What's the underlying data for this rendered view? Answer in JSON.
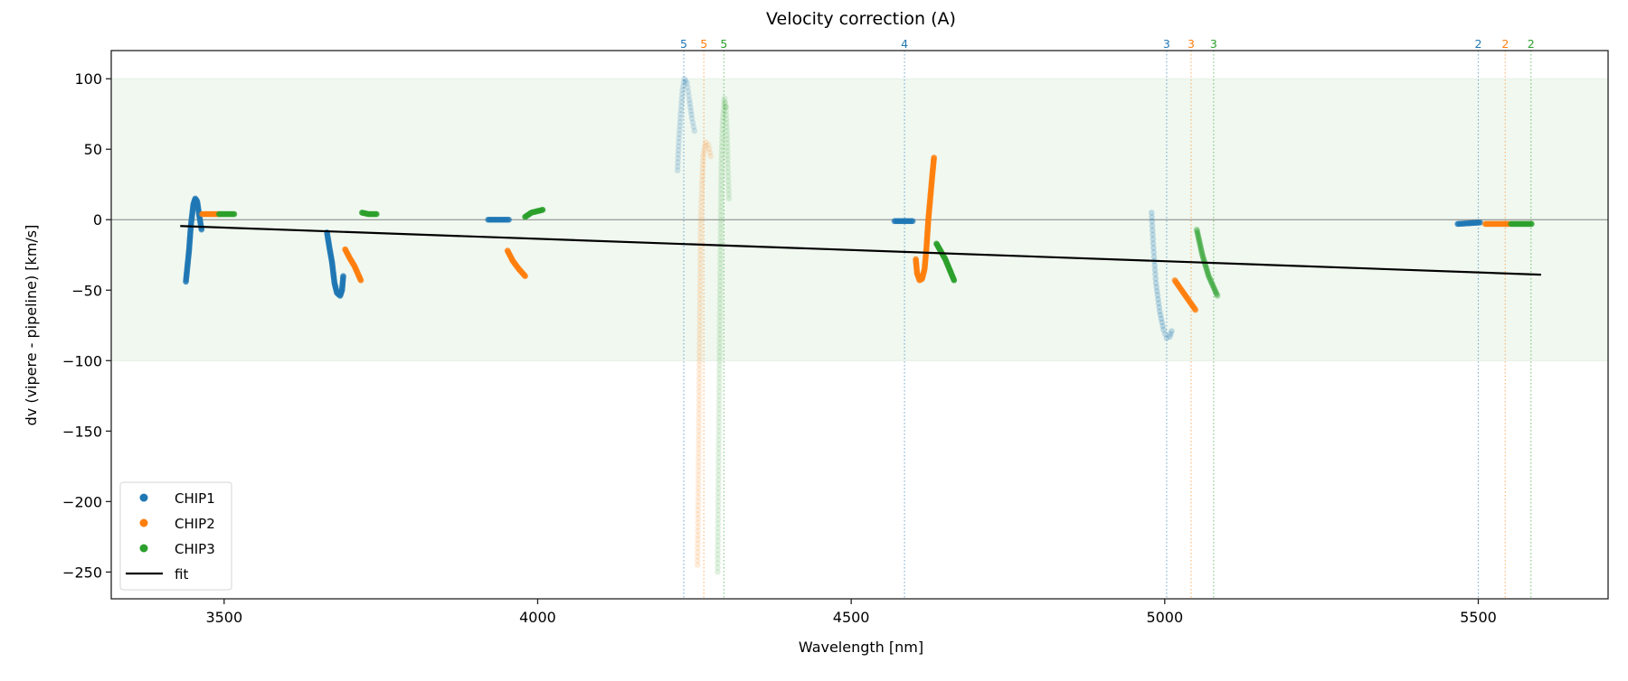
{
  "chart_data": {
    "type": "scatter",
    "title": "Velocity correction (A)",
    "xlabel": "Wavelength [nm]",
    "ylabel": "dv (vipere - pipeline) [km/s]",
    "xlim": [
      3320,
      5707
    ],
    "ylim": [
      -269,
      120
    ],
    "xticks": [
      3500,
      4000,
      4500,
      5000,
      5500
    ],
    "yticks": [
      100,
      50,
      0,
      -50,
      -100,
      -150,
      -200,
      -250
    ],
    "grid": false,
    "shaded_band": {
      "y_min": -100,
      "y_max": 100,
      "color": "#f0f8f0"
    },
    "zero_line": 0,
    "legend": {
      "placement": "lower-left",
      "entries": [
        "CHIP1",
        "CHIP2",
        "CHIP3",
        "fit"
      ]
    },
    "series": [
      {
        "name": "CHIP1",
        "color": "#1f77b4",
        "segments": [
          {
            "alpha": 0.75,
            "points": [
              [
                3439,
                -44
              ],
              [
                3444,
                -22
              ],
              [
                3447,
                -4
              ],
              [
                3451,
                11
              ],
              [
                3454,
                15
              ],
              [
                3457,
                13
              ],
              [
                3460,
                4
              ],
              [
                3464,
                -7
              ]
            ]
          },
          {
            "alpha": 0.75,
            "points": [
              [
                3664,
                -9
              ],
              [
                3668,
                -20
              ],
              [
                3672,
                -30
              ],
              [
                3676,
                -45
              ],
              [
                3680,
                -52
              ],
              [
                3685,
                -54
              ],
              [
                3688,
                -50
              ],
              [
                3690,
                -40
              ]
            ]
          },
          {
            "alpha": 0.75,
            "points": [
              [
                3921,
                0
              ],
              [
                3954,
                0
              ]
            ]
          },
          {
            "alpha": 0.18,
            "points": [
              [
                4223,
                35
              ],
              [
                4225,
                55
              ],
              [
                4228,
                75
              ],
              [
                4231,
                92
              ],
              [
                4234,
                100
              ],
              [
                4238,
                97
              ],
              [
                4242,
                85
              ],
              [
                4246,
                72
              ],
              [
                4250,
                63
              ]
            ]
          },
          {
            "alpha": 0.75,
            "points": [
              [
                4569,
                -1
              ],
              [
                4598,
                -1
              ]
            ]
          },
          {
            "alpha": 0.25,
            "points": [
              [
                4979,
                5
              ],
              [
                4982,
                -20
              ],
              [
                4986,
                -45
              ],
              [
                4992,
                -65
              ],
              [
                4998,
                -78
              ],
              [
                5003,
                -84
              ],
              [
                5008,
                -83
              ],
              [
                5011,
                -79
              ]
            ]
          },
          {
            "alpha": 0.75,
            "points": [
              [
                5467,
                -3
              ],
              [
                5503,
                -2
              ]
            ]
          }
        ]
      },
      {
        "name": "CHIP2",
        "color": "#ff7f0e",
        "segments": [
          {
            "alpha": 0.85,
            "points": [
              [
                3465,
                4
              ],
              [
                3492,
                4
              ]
            ]
          },
          {
            "alpha": 0.85,
            "points": [
              [
                3693,
                -21
              ],
              [
                3700,
                -27
              ],
              [
                3708,
                -33
              ],
              [
                3718,
                -43
              ]
            ]
          },
          {
            "alpha": 0.85,
            "points": [
              [
                3952,
                -22
              ],
              [
                3960,
                -29
              ],
              [
                3970,
                -35
              ],
              [
                3980,
                -40
              ]
            ]
          },
          {
            "alpha": 0.15,
            "points": [
              [
                4276,
                45
              ],
              [
                4272,
                53
              ],
              [
                4268,
                55
              ],
              [
                4264,
                45
              ],
              [
                4262,
                25
              ],
              [
                4260,
                0
              ],
              [
                4259,
                -50
              ],
              [
                4258,
                -100
              ],
              [
                4257,
                -150
              ],
              [
                4256,
                -200
              ],
              [
                4255,
                -245
              ]
            ]
          },
          {
            "alpha": 0.8,
            "points": [
              [
                4603,
                -28
              ],
              [
                4605,
                -38
              ],
              [
                4609,
                -43
              ],
              [
                4613,
                -42
              ],
              [
                4617,
                -35
              ],
              [
                4620,
                -20
              ],
              [
                4623,
                0
              ],
              [
                4626,
                15
              ],
              [
                4629,
                30
              ],
              [
                4632,
                44
              ]
            ]
          },
          {
            "alpha": 0.7,
            "points": [
              [
                5016,
                -43
              ],
              [
                5030,
                -52
              ],
              [
                5049,
                -64
              ]
            ]
          },
          {
            "alpha": 0.8,
            "points": [
              [
                5511,
                -3
              ],
              [
                5549,
                -3
              ]
            ]
          }
        ]
      },
      {
        "name": "CHIP3",
        "color": "#2ca02c",
        "segments": [
          {
            "alpha": 0.85,
            "points": [
              [
                3492,
                4
              ],
              [
                3516,
                4
              ]
            ]
          },
          {
            "alpha": 0.85,
            "points": [
              [
                3720,
                5
              ],
              [
                3730,
                4
              ],
              [
                3743,
                4
              ]
            ]
          },
          {
            "alpha": 0.85,
            "points": [
              [
                3980,
                2
              ],
              [
                3990,
                5
              ],
              [
                4008,
                7
              ]
            ]
          },
          {
            "alpha": 0.15,
            "points": [
              [
                4300,
                80
              ],
              [
                4298,
                86
              ],
              [
                4295,
                70
              ],
              [
                4293,
                40
              ],
              [
                4292,
                0
              ],
              [
                4291,
                -50
              ],
              [
                4290,
                -100
              ],
              [
                4289,
                -150
              ],
              [
                4288,
                -200
              ],
              [
                4287,
                -250
              ]
            ]
          },
          {
            "alpha": 0.15,
            "points": [
              [
                4300,
                80
              ],
              [
                4302,
                60
              ],
              [
                4303,
                40
              ],
              [
                4305,
                15
              ]
            ]
          },
          {
            "alpha": 0.85,
            "points": [
              [
                4636,
                -17
              ],
              [
                4650,
                -28
              ],
              [
                4664,
                -43
              ]
            ]
          },
          {
            "alpha": 0.35,
            "points": [
              [
                5051,
                -7
              ],
              [
                5060,
                -25
              ],
              [
                5070,
                -40
              ],
              [
                5084,
                -54
              ]
            ]
          },
          {
            "alpha": 0.8,
            "points": [
              [
                5552,
                -3
              ],
              [
                5585,
                -3
              ]
            ]
          }
        ]
      }
    ],
    "fit": {
      "name": "fit",
      "color": "#000000",
      "x": [
        3430,
        5600
      ],
      "y": [
        -4.5,
        -39
      ]
    },
    "order_markers": [
      {
        "label": "5",
        "x": 4233,
        "color": "#1f77b4"
      },
      {
        "label": "5",
        "x": 4265,
        "color": "#ff7f0e"
      },
      {
        "label": "5",
        "x": 4297,
        "color": "#2ca02c"
      },
      {
        "label": "4",
        "x": 4585,
        "color": "#1f77b4"
      },
      {
        "label": "3",
        "x": 5003,
        "color": "#1f77b4"
      },
      {
        "label": "3",
        "x": 5042,
        "color": "#ff7f0e"
      },
      {
        "label": "3",
        "x": 5078,
        "color": "#2ca02c"
      },
      {
        "label": "2",
        "x": 5500,
        "color": "#1f77b4"
      },
      {
        "label": "2",
        "x": 5543,
        "color": "#ff7f0e"
      },
      {
        "label": "2",
        "x": 5584,
        "color": "#2ca02c"
      }
    ]
  }
}
